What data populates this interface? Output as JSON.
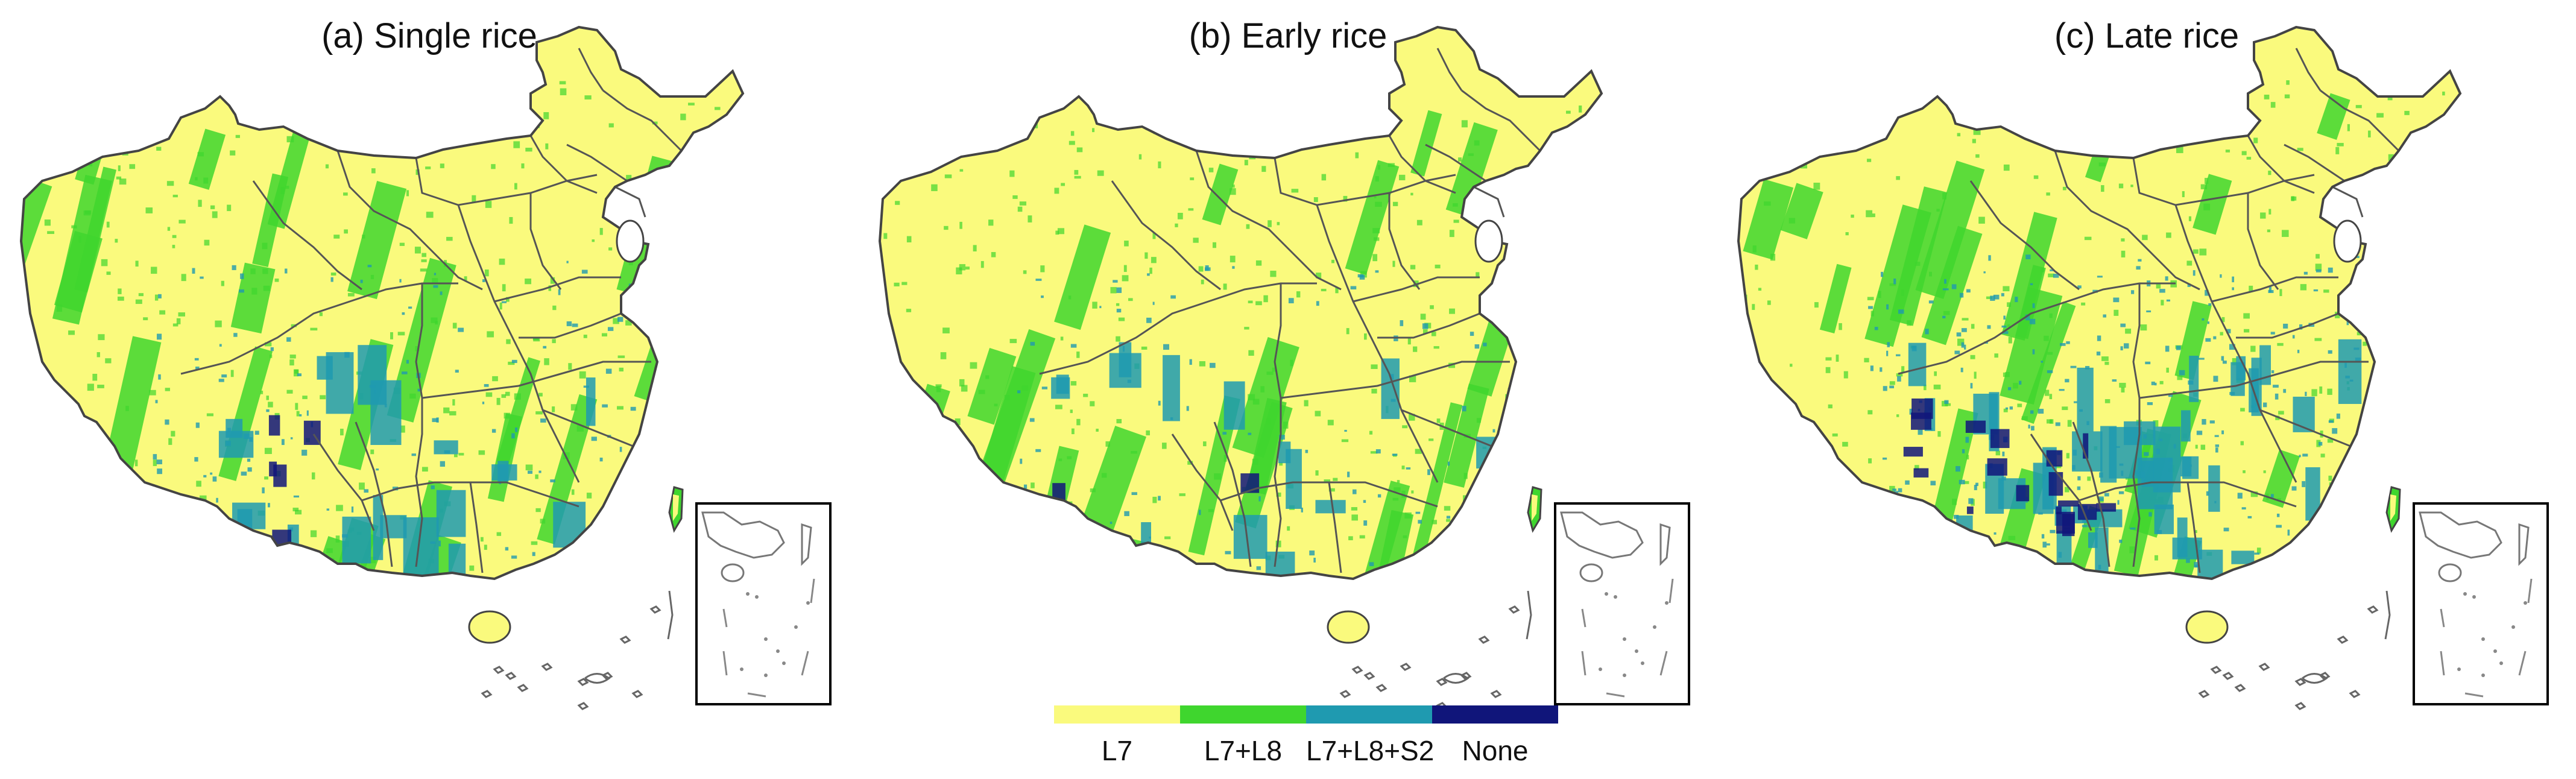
{
  "panels": [
    {
      "title": "(a) Single rice",
      "blue_level": 0.35,
      "dark_level": 0.12
    },
    {
      "title": "(b) Early rice",
      "blue_level": 0.25,
      "dark_level": 0.05
    },
    {
      "title": "(c) Late rice",
      "blue_level": 0.75,
      "dark_level": 0.45
    }
  ],
  "legend": {
    "items": [
      {
        "label": "L7",
        "color": "#fafa7d"
      },
      {
        "label": "L7+L8",
        "color": "#3fd62e"
      },
      {
        "label": "L7+L8+S2",
        "color": "#1f9ab0"
      },
      {
        "label": "None",
        "color": "#10157a"
      }
    ]
  },
  "colors": {
    "background": "#ffffff",
    "boundary": "#555555",
    "inset_frame": "#000000",
    "island_gray": "#666666"
  }
}
